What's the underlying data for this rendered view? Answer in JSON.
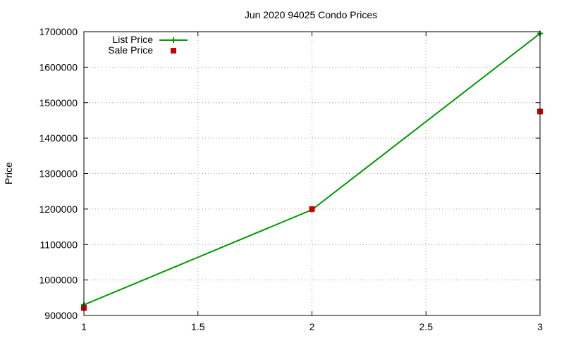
{
  "chart_data": {
    "type": "line",
    "title": "Jun 2020 94025 Condo Prices",
    "xlabel": "",
    "ylabel": "Price",
    "xlim": [
      1,
      3
    ],
    "ylim": [
      900000,
      1700000
    ],
    "x_ticks": [
      "1",
      "1.5",
      "2",
      "2.5",
      "3"
    ],
    "y_ticks": [
      "900000",
      "1000000",
      "1100000",
      "1200000",
      "1300000",
      "1400000",
      "1500000",
      "1600000",
      "1700000"
    ],
    "grid": true,
    "legend_position": "top-left",
    "series": [
      {
        "name": "List Price",
        "style": "lines+points",
        "marker": "plus",
        "color": "#009900",
        "x": [
          1,
          2,
          3
        ],
        "y": [
          930000,
          1198000,
          1695000
        ]
      },
      {
        "name": "Sale Price",
        "style": "points",
        "marker": "square",
        "color": "#cc0000",
        "x": [
          1,
          2,
          3
        ],
        "y": [
          921000,
          1200000,
          1475000
        ]
      }
    ]
  }
}
